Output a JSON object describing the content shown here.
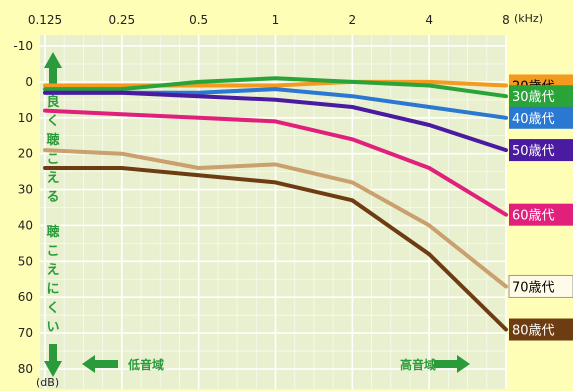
{
  "chart_data": {
    "type": "line",
    "title": "",
    "x_unit": "(kHz)",
    "y_unit": "(dB)",
    "x": [
      "0.125",
      "0.25",
      "0.5",
      "1",
      "2",
      "4",
      "8"
    ],
    "y_ticks": [
      -10,
      0,
      10,
      20,
      30,
      40,
      50,
      60,
      70,
      80
    ],
    "ylim": [
      -10,
      80
    ],
    "y_inverted": true,
    "grid": true,
    "series": [
      {
        "name": "20歳代",
        "color": "#f39a1f",
        "label_bg": "#f39a1f",
        "label_fg": "#000000",
        "values": [
          1,
          1,
          1,
          1,
          0,
          0,
          1
        ]
      },
      {
        "name": "30歳代",
        "color": "#2aa338",
        "label_bg": "#2aa338",
        "label_fg": "#ffffff",
        "values": [
          2,
          2,
          0,
          -1,
          0,
          1,
          4
        ]
      },
      {
        "name": "40歳代",
        "color": "#2a78d2",
        "label_bg": "#2a78d2",
        "label_fg": "#ffffff",
        "values": [
          3,
          3,
          3,
          2,
          4,
          7,
          10
        ]
      },
      {
        "name": "50歳代",
        "color": "#4a1aa0",
        "label_bg": "#4a1aa0",
        "label_fg": "#ffffff",
        "values": [
          3,
          3,
          4,
          5,
          7,
          12,
          19
        ]
      },
      {
        "name": "60歳代",
        "color": "#e0207a",
        "label_bg": "#e0207a",
        "label_fg": "#ffffff",
        "values": [
          8,
          9,
          10,
          11,
          16,
          24,
          37
        ]
      },
      {
        "name": "70歳代",
        "color": "#c9a06e",
        "label_bg": "#fffbe8",
        "label_fg": "#000000",
        "values": [
          19,
          20,
          24,
          23,
          28,
          40,
          57
        ]
      },
      {
        "name": "80歳代",
        "color": "#6e3c12",
        "label_bg": "#6e3c12",
        "label_fg": "#ffffff",
        "values": [
          24,
          24,
          26,
          28,
          33,
          48,
          69
        ]
      }
    ],
    "annotations": {
      "better": "良く聴こえる",
      "worse": "聴こえにくい",
      "low": "低音域",
      "high": "高音域"
    },
    "colors": {
      "background": "#fefeb6",
      "plot_bg": "#e9f0cf",
      "grid": "#ffffff",
      "arrow": "#2a9a3a"
    }
  }
}
